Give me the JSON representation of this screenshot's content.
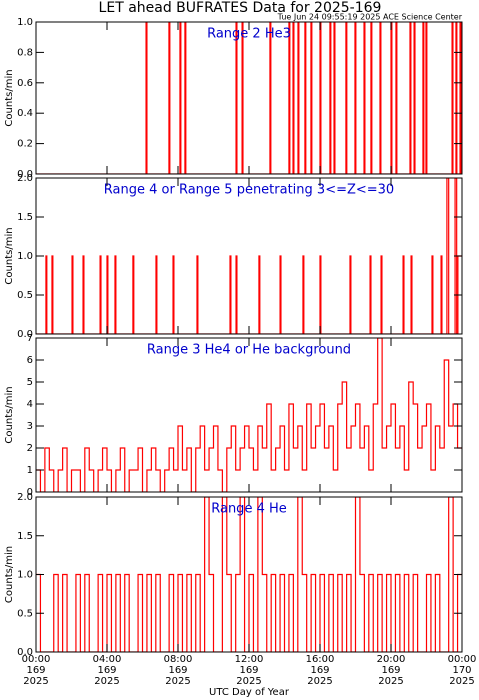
{
  "title": "LET ahead BUFRATES Data for 2025-169",
  "subtitle": "Tue Jun 24 09:55:19 2025 ACE Science Center",
  "xlabel": "UTC Day of Year",
  "chart_data": [
    {
      "type": "step",
      "title": "Range 2 He3",
      "ylabel": "Counts/min",
      "color": "#ff0000",
      "xlim": [
        0,
        24
      ],
      "ylim": [
        0,
        1
      ],
      "yticks": [
        {
          "value": 0,
          "label": "0.0"
        },
        {
          "value": 0.2,
          "label": "0.2"
        },
        {
          "value": 0.4,
          "label": "0.4"
        },
        {
          "value": 0.6,
          "label": "0.6"
        },
        {
          "value": 0.8,
          "label": "0.8"
        },
        {
          "value": 1,
          "label": "1.0"
        }
      ],
      "x": [
        0,
        6.2,
        6.25,
        7.49,
        7.54,
        8.11,
        8.16,
        8.39,
        8.44,
        11.27,
        11.32,
        11.61,
        11.66,
        13.18,
        13.23,
        14.25,
        14.3,
        14.48,
        14.53,
        14.76,
        14.81,
        15.15,
        15.2,
        15.49,
        15.54,
        16.0,
        16.05,
        16.56,
        16.61,
        16.79,
        16.84,
        17.46,
        17.51,
        17.97,
        18.02,
        18.48,
        18.53,
        18.87,
        18.92,
        19.38,
        19.43,
        20.0,
        20.05,
        20.28,
        20.33,
        21.07,
        21.12,
        21.3,
        21.35,
        21.8,
        21.85,
        21.97,
        22.02,
        23.44,
        23.49,
        23.66,
        23.71,
        23.89,
        23.94
      ],
      "values": [
        0,
        1,
        0,
        1,
        0,
        1,
        0,
        1,
        0,
        1,
        0,
        1,
        0,
        1,
        0,
        1,
        0,
        1,
        0,
        1,
        0,
        1,
        0,
        1,
        0,
        1,
        0,
        1,
        0,
        1,
        0,
        1,
        0,
        1,
        0,
        1,
        0,
        1,
        0,
        1,
        0,
        1,
        0,
        1,
        0,
        1,
        0,
        1,
        0,
        1,
        0,
        1,
        0,
        1,
        0,
        1,
        0,
        1,
        0
      ]
    },
    {
      "type": "step",
      "title": "Range 4 or Range 5 penetrating 3<=Z<=30",
      "ylabel": "Counts/min",
      "color": "#ff0000",
      "xlim": [
        0,
        24
      ],
      "ylim": [
        0,
        2
      ],
      "yticks": [
        {
          "value": 0,
          "label": "0.0"
        },
        {
          "value": 0.5,
          "label": "0.5"
        },
        {
          "value": 1,
          "label": "1.0"
        },
        {
          "value": 1.5,
          "label": "1.5"
        },
        {
          "value": 2,
          "label": "2.0"
        }
      ],
      "x": [
        0,
        0.56,
        0.61,
        0.9,
        0.95,
        2.03,
        2.08,
        2.65,
        2.7,
        3.61,
        3.66,
        4.0,
        4.05,
        4.45,
        4.5,
        5.46,
        5.51,
        6.76,
        6.81,
        7.72,
        7.77,
        9.07,
        9.12,
        10.93,
        10.98,
        11.27,
        11.32,
        12.56,
        12.61,
        13.75,
        13.8,
        15.04,
        15.09,
        16.0,
        16.05,
        17.69,
        17.74,
        18.82,
        18.87,
        19.44,
        19.49,
        20.68,
        20.73,
        21.13,
        21.18,
        22.31,
        22.36,
        22.82,
        22.87,
        23.15,
        23.25,
        23.61,
        23.7,
        23.77
      ],
      "values": [
        0,
        1,
        0,
        1,
        0,
        1,
        0,
        1,
        0,
        1,
        0,
        1,
        0,
        1,
        0,
        1,
        0,
        1,
        0,
        1,
        0,
        1,
        0,
        1,
        0,
        1,
        0,
        1,
        0,
        1,
        0,
        1,
        0,
        1,
        0,
        1,
        0,
        1,
        0,
        1,
        0,
        1,
        0,
        1,
        0,
        1,
        0,
        1,
        0,
        2,
        0,
        2,
        0,
        1
      ]
    },
    {
      "type": "step",
      "title": "Range 3 He4 or He background",
      "ylabel": "Counts/min",
      "color": "#ff0000",
      "xlim": [
        0,
        24
      ],
      "ylim": [
        0,
        7
      ],
      "yticks": [
        0,
        1,
        2,
        3,
        4,
        5,
        6,
        7
      ],
      "x": [
        0,
        0.25,
        0.5,
        0.75,
        1,
        1.25,
        1.5,
        1.75,
        2,
        2.25,
        2.5,
        2.75,
        3,
        3.25,
        3.5,
        3.75,
        4,
        4.25,
        4.5,
        4.75,
        5,
        5.25,
        5.5,
        5.75,
        6,
        6.25,
        6.5,
        6.75,
        7,
        7.25,
        7.5,
        7.75,
        8,
        8.25,
        8.5,
        8.75,
        9,
        9.25,
        9.5,
        9.75,
        10,
        10.25,
        10.5,
        10.75,
        11,
        11.25,
        11.5,
        11.75,
        12,
        12.25,
        12.5,
        12.75,
        13,
        13.25,
        13.5,
        13.75,
        14,
        14.25,
        14.5,
        14.75,
        15,
        15.25,
        15.5,
        15.75,
        16,
        16.25,
        16.5,
        16.75,
        17,
        17.25,
        17.5,
        17.75,
        18,
        18.25,
        18.5,
        18.75,
        19,
        19.25,
        19.5,
        19.75,
        20,
        20.25,
        20.5,
        20.75,
        21,
        21.25,
        21.5,
        21.75,
        22,
        22.25,
        22.5,
        22.75,
        23,
        23.25,
        23.5,
        23.75
      ],
      "values": [
        1,
        0,
        2,
        1,
        0,
        1,
        2,
        0,
        1,
        1,
        0,
        2,
        1,
        0,
        1,
        2,
        1,
        0,
        1,
        2,
        0,
        1,
        1,
        2,
        0,
        1,
        2,
        1,
        0,
        1,
        2,
        1,
        3,
        1,
        2,
        0,
        2,
        3,
        1,
        2,
        3,
        1,
        0,
        2,
        3,
        1,
        2,
        3,
        2,
        1,
        3,
        2,
        4,
        1,
        2,
        3,
        1,
        4,
        2,
        3,
        1,
        4,
        2,
        3,
        4,
        2,
        3,
        1,
        4,
        5,
        2,
        3,
        4,
        2,
        3,
        1,
        4,
        7,
        2,
        3,
        4,
        2,
        3,
        1,
        5,
        4,
        2,
        3,
        4,
        1,
        3,
        2,
        6,
        3,
        4,
        2
      ]
    },
    {
      "type": "step",
      "title": "Range 4 He",
      "ylabel": "Counts/min",
      "color": "#ff0000",
      "xlim": [
        0,
        24
      ],
      "ylim": [
        0,
        2
      ],
      "yticks": [
        {
          "value": 0,
          "label": "0.0"
        },
        {
          "value": 0.5,
          "label": "0.5"
        },
        {
          "value": 1,
          "label": "1.0"
        },
        {
          "value": 1.5,
          "label": "1.5"
        },
        {
          "value": 2,
          "label": "2.0"
        }
      ],
      "xticks": [
        {
          "value": 0,
          "label": [
            "00:00",
            "169",
            "2025"
          ]
        },
        {
          "value": 4,
          "label": [
            "04:00",
            "169",
            "2025"
          ]
        },
        {
          "value": 8,
          "label": [
            "08:00",
            "169",
            "2025"
          ]
        },
        {
          "value": 12,
          "label": [
            "12:00",
            "169",
            "2025"
          ]
        },
        {
          "value": 16,
          "label": [
            "16:00",
            "169",
            "2025"
          ]
        },
        {
          "value": 20,
          "label": [
            "20:00",
            "169",
            "2025"
          ]
        },
        {
          "value": 24,
          "label": [
            "00:00",
            "170",
            "2025"
          ]
        }
      ],
      "x": [
        0,
        0.25,
        0.5,
        0.75,
        1,
        1.25,
        1.5,
        1.75,
        2,
        2.25,
        2.5,
        2.75,
        3,
        3.25,
        3.5,
        3.75,
        4,
        4.25,
        4.5,
        4.75,
        5,
        5.25,
        5.5,
        5.75,
        6,
        6.25,
        6.5,
        6.75,
        7,
        7.25,
        7.5,
        7.75,
        8,
        8.25,
        8.5,
        8.75,
        9,
        9.25,
        9.5,
        9.75,
        10,
        10.25,
        10.5,
        10.75,
        11,
        11.25,
        11.5,
        11.75,
        12,
        12.25,
        12.5,
        12.75,
        13,
        13.25,
        13.5,
        13.75,
        14,
        14.25,
        14.5,
        14.75,
        15,
        15.25,
        15.5,
        15.75,
        16,
        16.25,
        16.5,
        16.75,
        17,
        17.25,
        17.5,
        17.75,
        18,
        18.25,
        18.5,
        18.75,
        19,
        19.25,
        19.5,
        19.75,
        20,
        20.25,
        20.5,
        20.75,
        21,
        21.25,
        21.5,
        21.75,
        22,
        22.25,
        22.5,
        22.75,
        23,
        23.25,
        23.5,
        23.75
      ],
      "values": [
        1,
        0,
        0,
        0,
        1,
        0,
        1,
        0,
        0,
        1,
        0,
        1,
        0,
        0,
        1,
        0,
        1,
        0,
        1,
        0,
        1,
        0,
        0,
        1,
        0,
        1,
        0,
        1,
        0,
        0,
        1,
        0,
        1,
        0,
        1,
        0,
        1,
        0,
        2,
        1,
        0,
        0,
        2,
        1,
        0,
        1,
        2,
        0,
        1,
        0,
        2,
        1,
        0,
        1,
        0,
        1,
        0,
        1,
        0,
        2,
        1,
        0,
        1,
        0,
        1,
        0,
        1,
        0,
        1,
        0,
        1,
        0,
        2,
        1,
        0,
        1,
        0,
        1,
        0,
        1,
        0,
        1,
        0,
        1,
        0,
        1,
        0,
        0,
        1,
        0,
        1,
        0,
        0,
        2,
        0,
        1
      ]
    }
  ]
}
